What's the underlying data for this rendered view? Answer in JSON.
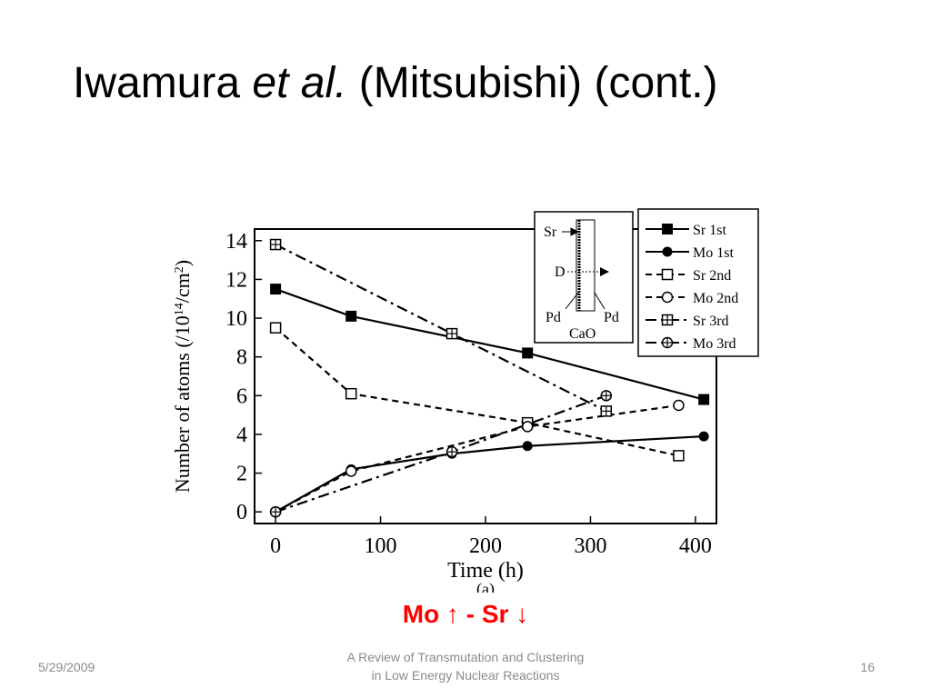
{
  "slide": {
    "title_pre": "Iwamura ",
    "title_em": "et al.",
    "title_post": " (Mitsubishi) (cont.)",
    "caption": "Mo ↑ - Sr ↓",
    "footer_date": "5/29/2009",
    "footer_center_line1": "A Review of Transmutation and Clustering",
    "footer_center_line2": "in Low Energy Nuclear Reactions",
    "footer_page": "16"
  },
  "chart_data": {
    "type": "line",
    "xlabel": "Time (h)",
    "ylabel": "Number of atoms (/10",
    "ylabel_sup1": "14",
    "ylabel_mid": "/cm",
    "ylabel_sup2": "2",
    "ylabel_end": ")",
    "xlim": [
      -20,
      420
    ],
    "ylim": [
      -0.6,
      14.6
    ],
    "xticks": [
      0,
      100,
      200,
      300,
      400
    ],
    "yticks": [
      0,
      2,
      4,
      6,
      8,
      10,
      12,
      14
    ],
    "grid": false,
    "legend_position": "top-right",
    "series": [
      {
        "name": "Sr 1st",
        "style": "solid",
        "marker": "filled-square",
        "x": [
          0,
          72,
          240,
          408
        ],
        "y": [
          11.5,
          10.1,
          8.2,
          5.8
        ]
      },
      {
        "name": "Mo 1st",
        "style": "solid",
        "marker": "filled-circle",
        "x": [
          0,
          72,
          168,
          240,
          408
        ],
        "y": [
          0,
          2.2,
          3.0,
          3.4,
          3.9
        ]
      },
      {
        "name": "Sr 2nd",
        "style": "dashed",
        "marker": "open-square",
        "x": [
          0,
          72,
          240,
          384
        ],
        "y": [
          9.5,
          6.1,
          4.6,
          2.9
        ]
      },
      {
        "name": "Mo 2nd",
        "style": "dashed",
        "marker": "open-circle",
        "x": [
          0,
          72,
          240,
          384
        ],
        "y": [
          0,
          2.1,
          4.4,
          5.5
        ]
      },
      {
        "name": "Sr 3rd",
        "style": "dashdot",
        "marker": "square-cross",
        "x": [
          0,
          168,
          315
        ],
        "y": [
          13.8,
          9.2,
          5.2
        ]
      },
      {
        "name": "Mo 3rd",
        "style": "dashdot",
        "marker": "circle-cross",
        "x": [
          0,
          168,
          315
        ],
        "y": [
          0,
          3.1,
          6.0
        ]
      }
    ],
    "inset": {
      "sr_label": "Sr",
      "d_label": "D",
      "pd_left": "Pd",
      "pd_right": "Pd",
      "cao_label": "CaO"
    },
    "cutoff_text": "(a)"
  }
}
